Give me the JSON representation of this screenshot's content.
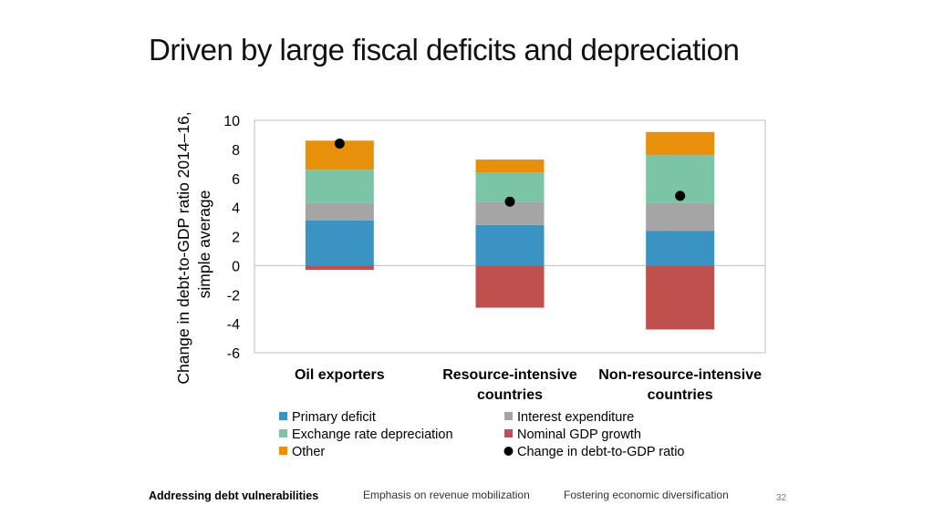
{
  "slide": {
    "title": "Driven by large fiscal deficits and depreciation",
    "page_number": "32"
  },
  "footer": {
    "items": [
      "Addressing debt vulnerabilities",
      "Emphasis on revenue mobilization",
      "Fostering economic diversification"
    ]
  },
  "chart_data": {
    "type": "bar",
    "stacked": true,
    "title": "",
    "ylabel": "Change in debt-to-GDP ratio 2014–16, simple average",
    "ylabel_lines": [
      "Change in debt-to-GDP ratio 2014–16,",
      "simple average"
    ],
    "ylim": [
      -6,
      10
    ],
    "yticks": [
      10,
      8,
      6,
      4,
      2,
      0,
      -2,
      -4,
      -6
    ],
    "categories": [
      [
        "Oil exporters"
      ],
      [
        "Resource-intensive",
        "countries"
      ],
      [
        "Non-resource-intensive",
        "countries"
      ]
    ],
    "series": [
      {
        "name": "Primary deficit",
        "color": "#3a93c3",
        "values": [
          3.1,
          2.8,
          2.4
        ]
      },
      {
        "name": "Interest expenditure",
        "color": "#a5a5a5",
        "values": [
          1.2,
          1.6,
          1.9
        ]
      },
      {
        "name": "Exchange rate depreciation",
        "color": "#7cc4a6",
        "values": [
          2.3,
          2.0,
          3.3
        ]
      },
      {
        "name": "Other",
        "color": "#e8900c",
        "values": [
          2.0,
          0.9,
          1.6
        ]
      },
      {
        "name": "Nominal GDP growth",
        "color": "#c0504d",
        "values": [
          -0.3,
          -2.9,
          -4.4
        ]
      }
    ],
    "markers": {
      "name": "Change in debt-to-GDP ratio",
      "color": "#000000",
      "values": [
        8.4,
        4.4,
        4.8
      ]
    },
    "legend": {
      "position": "bottom",
      "order": [
        "Primary deficit",
        "Interest expenditure",
        "Exchange rate depreciation",
        "Nominal GDP growth",
        "Other",
        "Change in debt-to-GDP ratio"
      ]
    }
  }
}
